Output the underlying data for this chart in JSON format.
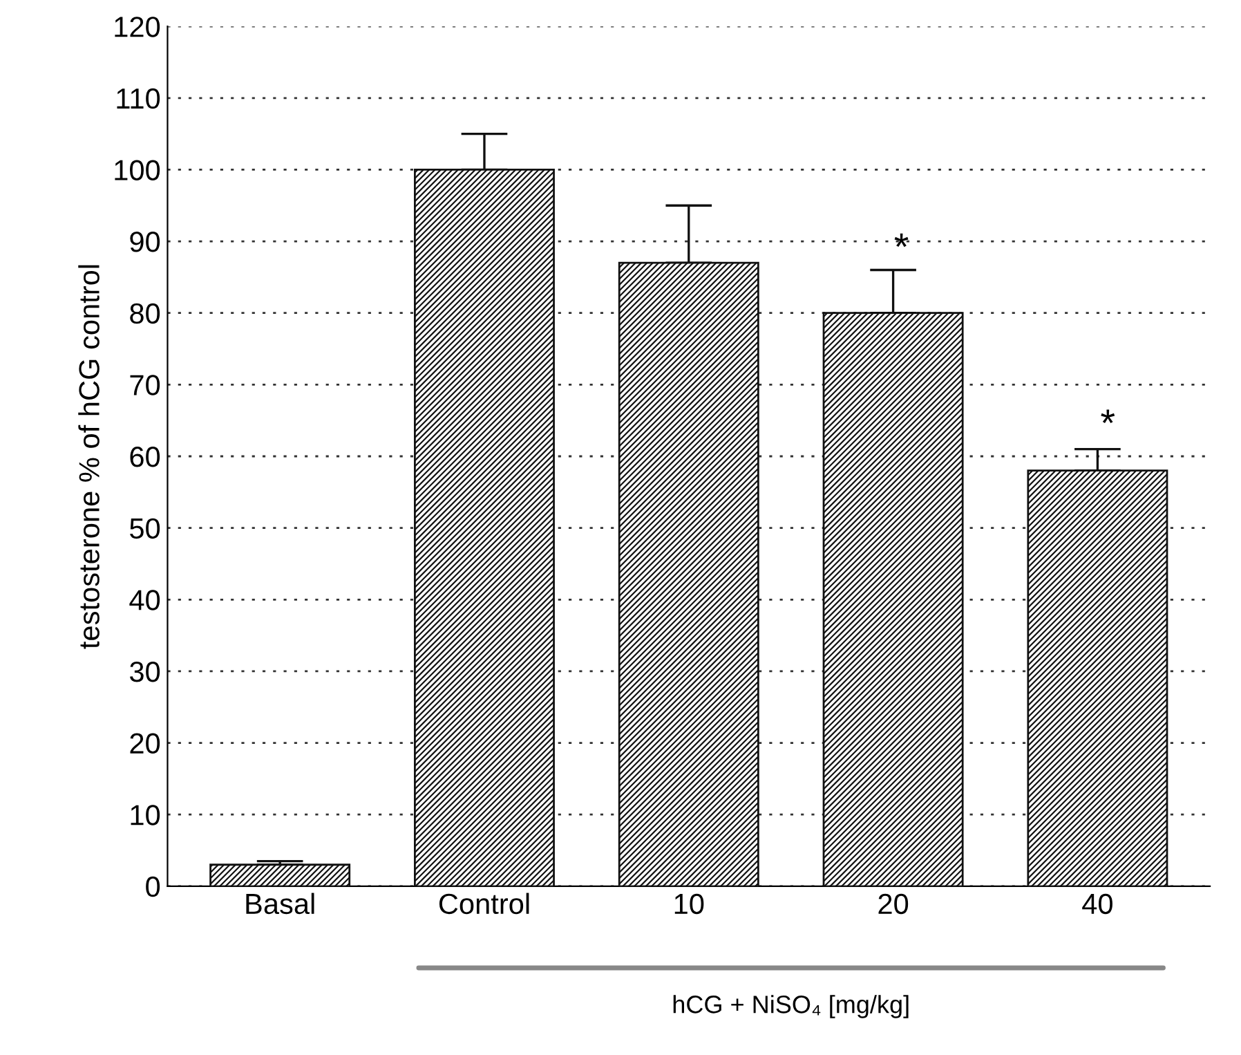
{
  "chart_data": {
    "type": "bar",
    "ylabel": "testosterone % of hCG control",
    "xlabel": "hCG + NiSO₄ [mg/kg]",
    "categories": [
      "Basal",
      "Control",
      "10",
      "20",
      "40"
    ],
    "values": [
      3,
      100,
      87,
      80,
      58
    ],
    "errors": [
      [
        3,
        3.5
      ],
      [
        100,
        105
      ],
      [
        87,
        95
      ],
      [
        80,
        86
      ],
      [
        58,
        61
      ]
    ],
    "color": "#111111",
    "ylim": [
      0,
      120
    ],
    "yticks": [
      0,
      10,
      20,
      30,
      40,
      50,
      60,
      70,
      80,
      90,
      100,
      110,
      120
    ],
    "grid": "y",
    "annotations": [
      "*",
      "*"
    ]
  }
}
